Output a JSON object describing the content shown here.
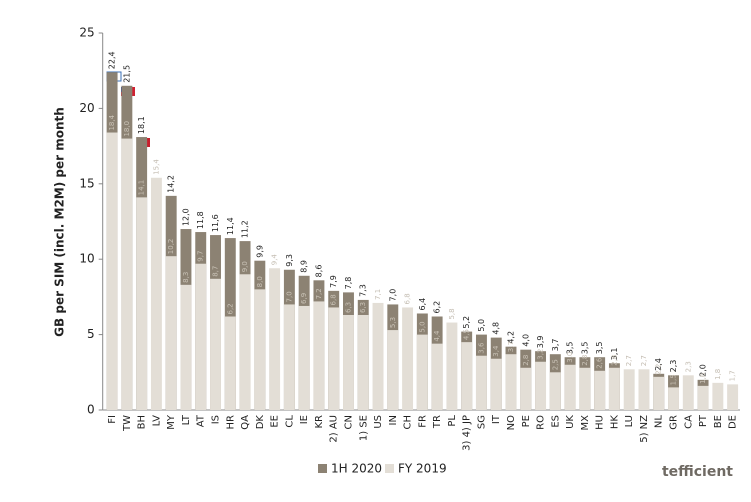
{
  "chart_data": {
    "type": "overlap-bar",
    "y_label": "GB per SIM (incl. M2M) per month",
    "logo": "tefficient",
    "categories": [
      "FI",
      "TW",
      "BH",
      "LV",
      "MY",
      "LT",
      "AT",
      "IS",
      "HR",
      "QA",
      "DK",
      "EE",
      "CL",
      "IE",
      "KR",
      "2) AU",
      "CN",
      "1) SE",
      "US",
      "IN",
      "CH",
      "FR",
      "TR",
      "PL",
      "3) 4) JP",
      "SG",
      "IT",
      "NO",
      "PE",
      "RO",
      "ES",
      "UK",
      "MX",
      "HU",
      "HK",
      "LU",
      "5) NZ",
      "NL",
      "GR",
      "CA",
      "PT",
      "BE",
      "DE"
    ],
    "series": [
      {
        "name": "1H 2020",
        "color": "#8c8273",
        "values": [
          22.4,
          21.5,
          18.1,
          null,
          14.2,
          12.0,
          11.8,
          11.6,
          11.4,
          11.2,
          9.9,
          null,
          9.3,
          8.9,
          8.6,
          7.9,
          7.8,
          7.3,
          null,
          7.0,
          null,
          6.4,
          6.2,
          null,
          5.2,
          5.0,
          4.8,
          4.2,
          4.0,
          3.9,
          3.7,
          3.5,
          3.5,
          3.5,
          3.1,
          null,
          null,
          2.4,
          2.3,
          null,
          2.0,
          null,
          null
        ],
        "value_labels": [
          "22,4",
          "21,5",
          "18,1",
          null,
          "14,2",
          "12,0",
          "11,8",
          "11,6",
          "11,4",
          "11,2",
          "9,9",
          null,
          "9,3",
          "8,9",
          "8,6",
          "7,9",
          "7,8",
          "7,3",
          null,
          "7,0",
          null,
          "6,4",
          "6,2",
          null,
          "5,2",
          "5,0",
          "4,8",
          "4,2",
          "4,0",
          "3,9",
          "3,7",
          "3,5",
          "3,5",
          "3,5",
          "3,1",
          null,
          null,
          "2,4",
          "2,3",
          null,
          "2,0",
          null,
          null
        ]
      },
      {
        "name": "FY 2019",
        "color": "#e3ded6",
        "values": [
          18.4,
          18.0,
          14.1,
          15.4,
          10.2,
          8.3,
          9.7,
          8.7,
          6.2,
          9.0,
          8.0,
          9.4,
          7.0,
          6.9,
          7.2,
          6.8,
          6.3,
          6.3,
          7.1,
          5.3,
          6.8,
          5.0,
          4.4,
          5.8,
          4.5,
          3.6,
          3.4,
          3.7,
          2.8,
          3.2,
          2.5,
          3.0,
          2.8,
          2.6,
          2.8,
          2.7,
          2.7,
          2.2,
          1.5,
          2.3,
          1.6,
          1.8,
          1.7
        ],
        "value_labels": [
          "18,4",
          "18,0",
          "14,1",
          "15,4",
          "10,2",
          "8,3",
          "9,7",
          "8,7",
          "6,2",
          "9,0",
          "8,0",
          "9,4",
          "7,0",
          "6,9",
          "7,2",
          "6,8",
          "6,3",
          "6,3",
          "7,1",
          "5,3",
          "6,8",
          "5,0",
          "4,4",
          "5,8",
          "4,5",
          "3,6",
          "3,4",
          "3,7",
          "2,8",
          "3,2",
          "2,5",
          "3,0",
          "2,8",
          "2,6",
          "2,8",
          "2,7",
          "2,7",
          "2,2",
          "1,5",
          "2,3",
          "1,6",
          "1,8",
          "1,7"
        ]
      }
    ],
    "ylim": [
      0,
      25
    ],
    "yticks": [
      0,
      5,
      10,
      15,
      20,
      25
    ]
  }
}
